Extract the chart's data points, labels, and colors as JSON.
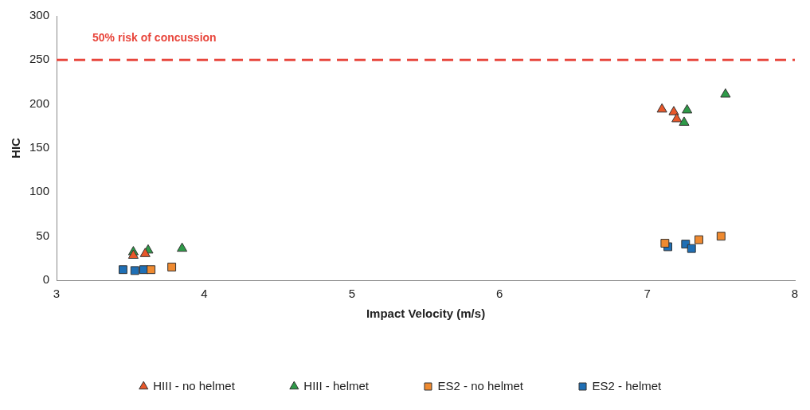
{
  "chart_data": {
    "type": "scatter",
    "xlabel": "Impact Velocity (m/s)",
    "ylabel": "HIC",
    "xlim": [
      3,
      8
    ],
    "xticks": [
      3,
      4,
      5,
      6,
      7,
      8
    ],
    "ylim": [
      0,
      300
    ],
    "yticks": [
      0,
      50,
      100,
      150,
      200,
      250,
      300
    ],
    "grid": false,
    "legend": "bottom",
    "ref_lines": [
      {
        "axis": "y",
        "value": 250,
        "label": "50% risk of concussion",
        "color": "#e8463c",
        "line_style": "dashed"
      }
    ],
    "series": [
      {
        "name": "HIII - no helmet",
        "color": "#e8572a",
        "marker": "triangle",
        "x": [
          3.52,
          3.6,
          7.1,
          7.18,
          7.2
        ],
        "values": [
          28,
          30,
          194,
          191,
          183
        ]
      },
      {
        "name": "HIII - helmet",
        "color": "#2e9a48",
        "marker": "triangle",
        "x": [
          3.52,
          3.62,
          3.85,
          7.27,
          7.25,
          7.53
        ],
        "values": [
          32,
          34,
          36,
          193,
          179,
          211
        ]
      },
      {
        "name": "ES2 - no helmet",
        "color": "#ef8a30",
        "marker": "square",
        "x": [
          3.64,
          3.78,
          7.12,
          7.35,
          7.5
        ],
        "values": [
          12,
          15,
          42,
          46,
          50
        ]
      },
      {
        "name": "ES2 - helmet",
        "color": "#1f6fb5",
        "marker": "square",
        "x": [
          3.45,
          3.53,
          3.59,
          7.14,
          7.26,
          7.3
        ],
        "values": [
          12,
          11,
          12,
          38,
          41,
          36
        ]
      }
    ]
  }
}
